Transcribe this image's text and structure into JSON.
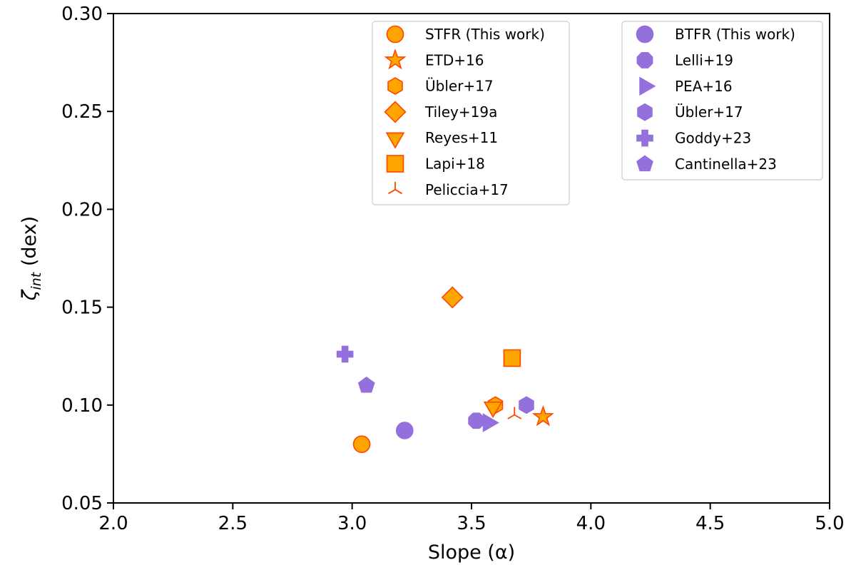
{
  "chart_data": {
    "type": "scatter",
    "title": "",
    "xlabel": "Slope (α)",
    "ylabel_symbol": "ζ",
    "ylabel_subscript": "int",
    "ylabel_unit": " (dex)",
    "xlim": [
      2.0,
      5.0
    ],
    "ylim": [
      0.05,
      0.3
    ],
    "xticks": [
      "2.0",
      "2.5",
      "3.0",
      "3.5",
      "4.0",
      "4.5",
      "5.0"
    ],
    "yticks": [
      "0.05",
      "0.10",
      "0.15",
      "0.20",
      "0.25",
      "0.30"
    ],
    "colors": {
      "stfr_fill": "#ffa500",
      "stfr_edge": "#ff4500",
      "btfr_fill": "#9370db",
      "btfr_edge": "#9370db",
      "axis": "#000000"
    },
    "legend_left": [
      {
        "label": "STFR (This work)",
        "marker": "circle"
      },
      {
        "label": "ETD+16",
        "marker": "star"
      },
      {
        "label": "Übler+17",
        "marker": "hexagon"
      },
      {
        "label": "Tiley+19a",
        "marker": "diamond"
      },
      {
        "label": "Reyes+11",
        "marker": "triangle-down"
      },
      {
        "label": "Lapi+18",
        "marker": "square"
      },
      {
        "label": "Peliccia+17",
        "marker": "tri-up"
      }
    ],
    "legend_right": [
      {
        "label": "BTFR (This work)",
        "marker": "circle"
      },
      {
        "label": "Lelli+19",
        "marker": "octagon"
      },
      {
        "label": "PEA+16",
        "marker": "triangle-right"
      },
      {
        "label": "Übler+17",
        "marker": "hexagon"
      },
      {
        "label": "Goddy+23",
        "marker": "plus"
      },
      {
        "label": "Cantinella+23",
        "marker": "pentagon"
      }
    ],
    "series": [
      {
        "name": "STFR (This work)",
        "group": "STFR",
        "marker": "circle",
        "x": 3.04,
        "y": 0.08
      },
      {
        "name": "ETD+16",
        "group": "STFR",
        "marker": "star",
        "x": 3.8,
        "y": 0.094
      },
      {
        "name": "Übler+17",
        "group": "STFR",
        "marker": "hexagon",
        "x": 3.6,
        "y": 0.1
      },
      {
        "name": "Tiley+19a",
        "group": "STFR",
        "marker": "diamond",
        "x": 3.42,
        "y": 0.155
      },
      {
        "name": "Reyes+11",
        "group": "STFR",
        "marker": "triangle-down",
        "x": 3.59,
        "y": 0.099
      },
      {
        "name": "Lapi+18",
        "group": "STFR",
        "marker": "square",
        "x": 3.67,
        "y": 0.124
      },
      {
        "name": "Peliccia+17",
        "group": "STFR",
        "marker": "tri-up",
        "x": 3.68,
        "y": 0.095
      },
      {
        "name": "BTFR (This work)",
        "group": "BTFR",
        "marker": "circle",
        "x": 3.22,
        "y": 0.087
      },
      {
        "name": "Lelli+19",
        "group": "BTFR",
        "marker": "octagon",
        "x": 3.52,
        "y": 0.092
      },
      {
        "name": "PEA+16",
        "group": "BTFR",
        "marker": "triangle-right",
        "x": 3.57,
        "y": 0.091
      },
      {
        "name": "Übler+17",
        "group": "BTFR",
        "marker": "hexagon",
        "x": 3.73,
        "y": 0.1
      },
      {
        "name": "Goddy+23",
        "group": "BTFR",
        "marker": "plus",
        "x": 2.97,
        "y": 0.126
      },
      {
        "name": "Cantinella+23",
        "group": "BTFR",
        "marker": "pentagon",
        "x": 3.06,
        "y": 0.11
      }
    ]
  }
}
